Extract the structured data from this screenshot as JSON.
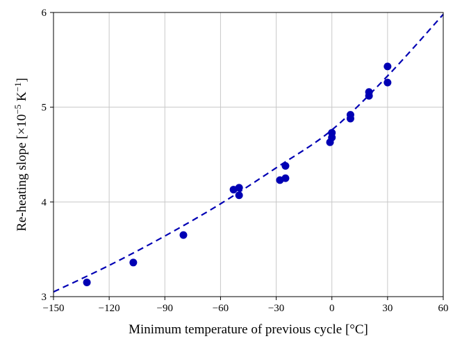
{
  "chart_data": {
    "type": "scatter",
    "title": "",
    "xlabel": "Minimum temperature of previous cycle [°C]",
    "ylabel": {
      "prefix": "Re-heating slope [×10",
      "exp": "−5",
      "unit": " K",
      "unit_exp": "−1",
      "suffix": "]"
    },
    "xlim": [
      -150,
      60
    ],
    "ylim": [
      3,
      6
    ],
    "xticks": [
      -150,
      -120,
      -90,
      -60,
      -30,
      0,
      30,
      60
    ],
    "xtick_labels": [
      "−150",
      "−120",
      "−90",
      "−60",
      "−30",
      "0",
      "30",
      "60"
    ],
    "yticks": [
      3,
      4,
      5,
      6
    ],
    "ytick_labels": [
      "3",
      "4",
      "5",
      "6"
    ],
    "grid": true,
    "legend": "none",
    "marker_color": "#0000b4",
    "line_color": "#0000b4",
    "series": [
      {
        "kind": "points",
        "x": [
          -132,
          -107,
          -80,
          -53,
          -50,
          -50,
          -28,
          -25,
          -25,
          -1,
          0,
          0,
          10,
          10,
          20,
          20,
          30,
          30
        ],
        "y": [
          3.15,
          3.36,
          3.65,
          4.13,
          4.15,
          4.07,
          4.23,
          4.25,
          4.38,
          4.63,
          4.68,
          4.73,
          4.88,
          4.92,
          5.12,
          5.16,
          5.26,
          5.43
        ]
      },
      {
        "kind": "fit-line",
        "style": "dashed",
        "x": [
          -150,
          -120,
          -90,
          -60,
          -30,
          0,
          30,
          60
        ],
        "y": [
          3.05,
          3.33,
          3.64,
          3.98,
          4.36,
          4.76,
          5.33,
          5.98
        ]
      }
    ]
  }
}
